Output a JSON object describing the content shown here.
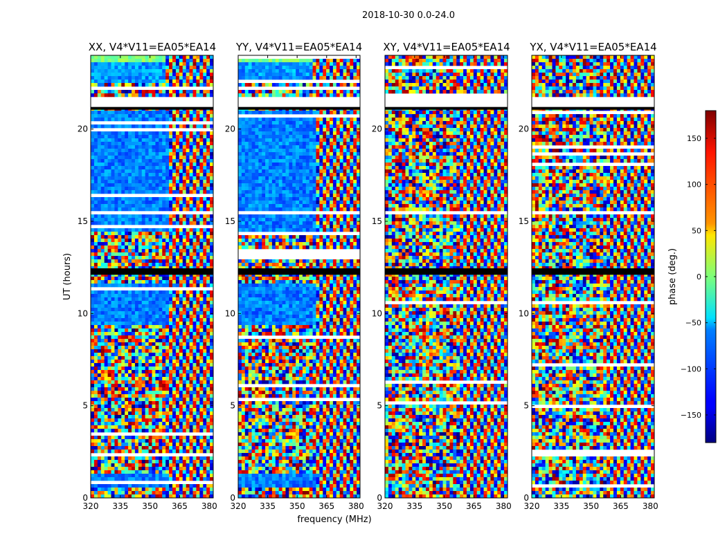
{
  "chart_data": {
    "type": "heatmap",
    "title": "2018-10-30 0.0-24.0",
    "xlabel": "frequency (MHz)",
    "ylabel": "UT (hours)",
    "xlim": [
      320,
      382
    ],
    "ylim": [
      0,
      24
    ],
    "x_ticks": [
      "320",
      "335",
      "350",
      "365",
      "380"
    ],
    "y_ticks": [
      "0",
      "5",
      "10",
      "15",
      "20"
    ],
    "panels": [
      {
        "name": "xx",
        "title": "XX, V4*V11=EA05*EA14"
      },
      {
        "name": "yy",
        "title": "YY, V4*V11=EA05*EA14"
      },
      {
        "name": "xy",
        "title": "XY, V4*V11=EA05*EA14"
      },
      {
        "name": "yx",
        "title": "YX, V4*V11=EA05*EA14"
      }
    ],
    "colorbar": {
      "label": "phase (deg.)",
      "range": [
        -180,
        180
      ],
      "ticks": [
        "150",
        "100",
        "50",
        "0",
        "−50",
        "−100",
        "−150"
      ],
      "colormap": "jet"
    },
    "flagged_blank_hours": [
      [
        21.2,
        21.75
      ],
      [
        15.45,
        15.6
      ],
      [
        4.6,
        4.75
      ]
    ],
    "flagged_black_hours": [
      [
        12.1,
        12.45
      ]
    ]
  }
}
